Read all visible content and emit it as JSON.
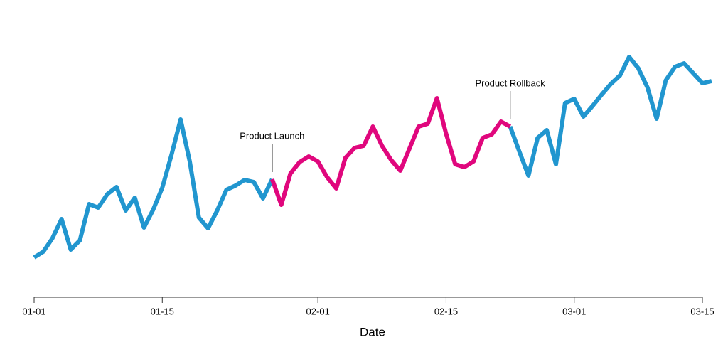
{
  "chart_data": {
    "type": "line",
    "x_label": "Date",
    "x": [
      "01-01",
      "01-02",
      "01-03",
      "01-04",
      "01-05",
      "01-06",
      "01-07",
      "01-08",
      "01-09",
      "01-10",
      "01-11",
      "01-12",
      "01-13",
      "01-14",
      "01-15",
      "01-16",
      "01-17",
      "01-18",
      "01-19",
      "01-20",
      "01-21",
      "01-22",
      "01-23",
      "01-24",
      "01-25",
      "01-26",
      "01-27",
      "01-28",
      "01-29",
      "01-30",
      "01-31",
      "02-01",
      "02-02",
      "02-03",
      "02-04",
      "02-05",
      "02-06",
      "02-07",
      "02-08",
      "02-09",
      "02-10",
      "02-11",
      "02-12",
      "02-13",
      "02-14",
      "02-15",
      "02-16",
      "02-17",
      "02-18",
      "02-19",
      "02-20",
      "02-21",
      "02-22",
      "02-23",
      "02-24",
      "02-25",
      "02-26",
      "02-27",
      "02-28",
      "03-01",
      "03-02",
      "03-03",
      "03-04",
      "03-05",
      "03-06",
      "03-07",
      "03-08",
      "03-09",
      "03-10",
      "03-11",
      "03-12",
      "03-13",
      "03-14",
      "03-15",
      "03-16"
    ],
    "values": [
      58,
      66,
      85,
      112,
      69,
      82,
      133,
      128,
      147,
      157,
      124,
      142,
      100,
      125,
      156,
      202,
      252,
      193,
      114,
      99,
      124,
      153,
      159,
      167,
      164,
      141,
      168,
      132,
      176,
      192,
      200,
      193,
      171,
      155,
      198,
      212,
      215,
      242,
      215,
      195,
      180,
      211,
      242,
      246,
      282,
      232,
      189,
      185,
      193,
      226,
      231,
      249,
      242,
      207,
      173,
      226,
      237,
      189,
      275,
      281,
      256,
      271,
      287,
      302,
      314,
      340,
      324,
      297,
      253,
      307,
      326,
      331,
      317,
      303,
      306
    ],
    "color": "#2196cf",
    "highlight": {
      "start": "01-27",
      "end": "02-22",
      "color": "#e0077d"
    },
    "annotations": [
      {
        "x": "01-27",
        "text": "Product Launch"
      },
      {
        "x": "02-22",
        "text": "Product Rollback"
      }
    ],
    "ylim": [
      0,
      370
    ],
    "xticks": [
      "01-01",
      "01-15",
      "02-01",
      "02-15",
      "03-01",
      "03-15"
    ]
  }
}
